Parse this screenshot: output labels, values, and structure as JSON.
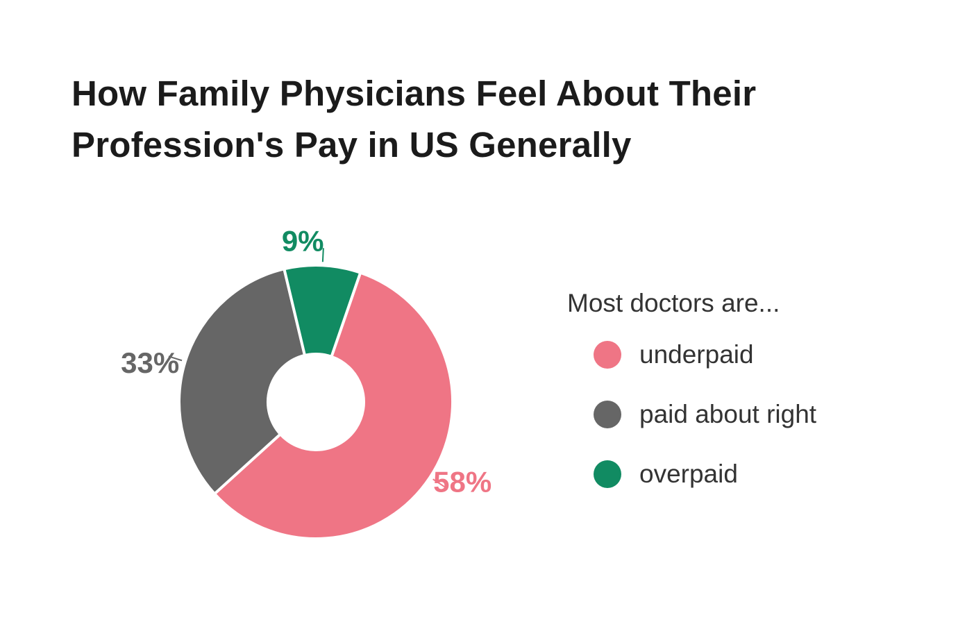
{
  "chart_data": {
    "type": "pie",
    "title": "How Family Physicians Feel About Their Profession's Pay in US Generally",
    "title_lines": [
      "How Family Physicians Feel About Their",
      "Profession's Pay in US Generally"
    ],
    "legend_heading": "Most doctors are...",
    "legend_placement": "right",
    "donut": true,
    "slices": [
      {
        "label": "underpaid",
        "value": 58,
        "value_label": "58%",
        "color": "#ef7585"
      },
      {
        "label": "paid about right",
        "value": 33,
        "value_label": "33%",
        "color": "#666666"
      },
      {
        "label": "overpaid",
        "value": 9,
        "value_label": "9%",
        "color": "#118b62"
      }
    ]
  }
}
